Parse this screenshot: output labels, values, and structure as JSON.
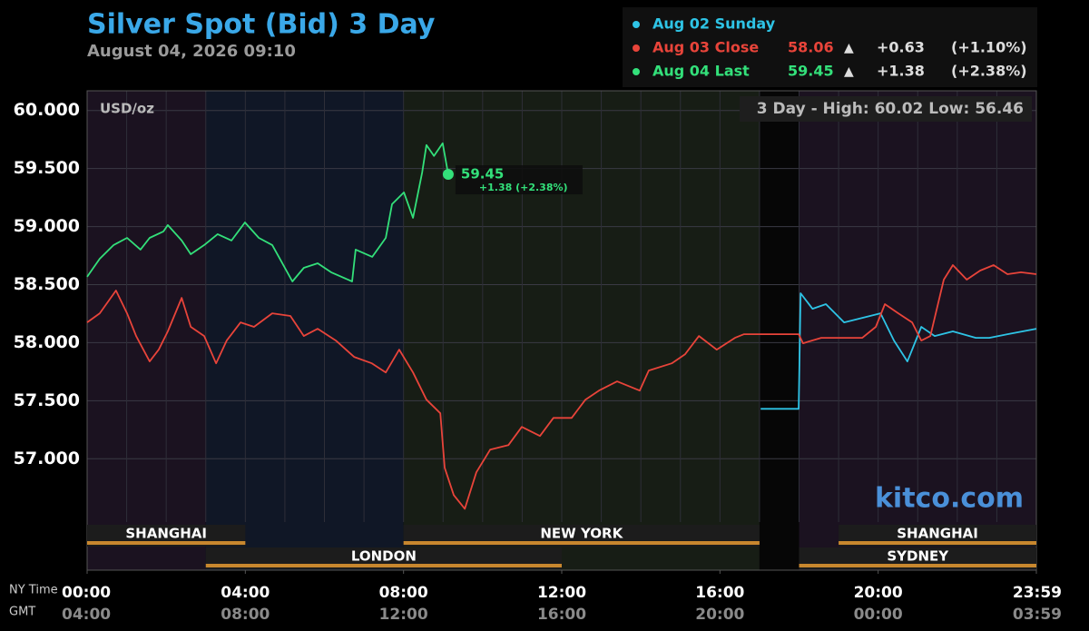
{
  "chart_data": {
    "type": "line",
    "title": "Silver Spot (Bid) 3 Day",
    "subtitle": "August 04, 2026 09:10",
    "y_label": "USD/oz",
    "range_note": "3 Day - High: 60.02  Low: 56.46",
    "watermark": "kitco.com",
    "x_axis_names": [
      "NY Time",
      "GMT"
    ],
    "xlim": [
      0,
      24
    ],
    "xticks": [
      {
        "value": 0,
        "label": "00:00"
      },
      {
        "value": 4,
        "label": "04:00"
      },
      {
        "value": 8,
        "label": "08:00"
      },
      {
        "value": 12,
        "label": "12:00"
      },
      {
        "value": 16,
        "label": "16:00"
      },
      {
        "value": 20,
        "label": "20:00"
      },
      {
        "value": 24,
        "label": "23:59"
      }
    ],
    "xticks_gmt": [
      "04:00",
      "08:00",
      "12:00",
      "16:00",
      "20:00",
      "00:00",
      "03:59"
    ],
    "xgrid": [
      1,
      2,
      3,
      4,
      5,
      6,
      7,
      8,
      9,
      10,
      11,
      12,
      13,
      14,
      15,
      16,
      17,
      18,
      19,
      20,
      21,
      22,
      23
    ],
    "ylim": [
      56.04,
      60.17
    ],
    "yticks": [
      {
        "value": 57,
        "label": "57.000"
      },
      {
        "value": 57.5,
        "label": "57.500"
      },
      {
        "value": 58,
        "label": "58.000"
      },
      {
        "value": 58.5,
        "label": "58.500"
      },
      {
        "value": 59,
        "label": "59.000"
      },
      {
        "value": 59.5,
        "label": "59.500"
      },
      {
        "value": 60,
        "label": "60.000"
      }
    ],
    "grid": true,
    "shading": [
      {
        "start": 0,
        "end": 3,
        "color": "#1b1220"
      },
      {
        "start": 3,
        "end": 8,
        "color": "#101726"
      },
      {
        "start": 8,
        "end": 17,
        "color": "#171d15"
      },
      {
        "start": 17,
        "end": 18,
        "color": "#060606"
      },
      {
        "start": 18,
        "end": 24,
        "color": "#1b1220"
      }
    ],
    "sessions": [
      {
        "name": "SHANGHAI",
        "start": 0,
        "end": 4,
        "row": 0
      },
      {
        "name": "NEW YORK",
        "start": 8,
        "end": 17,
        "row": 0
      },
      {
        "name": "SHANGHAI",
        "start": 19,
        "end": 24,
        "row": 0
      },
      {
        "name": "LONDON",
        "start": 3,
        "end": 12,
        "row": 1
      },
      {
        "name": "SYDNEY",
        "start": 18,
        "end": 24,
        "row": 1
      }
    ],
    "series": [
      {
        "name": "Aug 02 Sunday",
        "color": "#2ec4e6",
        "x": [
          17.03,
          17.99,
          18.04,
          18.34,
          18.68,
          19.14,
          19.6,
          20.06,
          20.4,
          20.74,
          21.09,
          21.43,
          21.89,
          22.47,
          22.81,
          23.27,
          24
        ],
        "values": [
          57.43,
          57.43,
          58.426,
          58.292,
          58.332,
          58.175,
          58.214,
          58.253,
          58.018,
          57.838,
          58.136,
          58.057,
          58.097,
          58.042,
          58.042,
          58.073,
          58.12
        ]
      },
      {
        "name": "Aug 03 Close",
        "color": "#e8443a",
        "summary": {
          "price": "58.06",
          "arrow": "▲",
          "change": "+0.63",
          "pct": "(+1.10%)"
        },
        "x": [
          0,
          0.32,
          0.73,
          1.01,
          1.24,
          1.58,
          1.81,
          2.04,
          2.39,
          2.62,
          2.96,
          3.26,
          3.53,
          3.88,
          4.22,
          4.68,
          5.14,
          5.48,
          5.83,
          6.29,
          6.75,
          7.2,
          7.55,
          7.89,
          8.24,
          8.58,
          8.93,
          9.04,
          9.27,
          9.55,
          9.84,
          10.19,
          10.65,
          10.99,
          11.45,
          11.79,
          12.25,
          12.6,
          12.94,
          13.4,
          13.97,
          14.2,
          14.78,
          15.12,
          15.47,
          15.92,
          16.38,
          16.61,
          17.03,
          17.99,
          18.1,
          18.56,
          19.14,
          19.6,
          19.94,
          20.17,
          20.51,
          20.86,
          21.09,
          21.32,
          21.66,
          21.89,
          22.24,
          22.58,
          22.92,
          23.27,
          23.61,
          24
        ],
        "values": [
          58.175,
          58.253,
          58.449,
          58.253,
          58.057,
          57.838,
          57.94,
          58.097,
          58.386,
          58.136,
          58.057,
          57.822,
          58.018,
          58.175,
          58.136,
          58.253,
          58.23,
          58.057,
          58.12,
          58.018,
          57.877,
          57.822,
          57.744,
          57.94,
          57.744,
          57.509,
          57.392,
          56.922,
          56.687,
          56.569,
          56.883,
          57.078,
          57.117,
          57.274,
          57.196,
          57.352,
          57.352,
          57.509,
          57.587,
          57.666,
          57.587,
          57.76,
          57.822,
          57.901,
          58.057,
          57.94,
          58.042,
          58.073,
          58.073,
          58.073,
          57.995,
          58.042,
          58.042,
          58.042,
          58.136,
          58.332,
          58.253,
          58.175,
          58.018,
          58.057,
          58.543,
          58.668,
          58.543,
          58.621,
          58.668,
          58.59,
          58.606,
          58.59
        ]
      },
      {
        "name": "Aug 04 Last",
        "color": "#33e07a",
        "summary": {
          "price": "59.45",
          "arrow": "▲",
          "change": "+1.38",
          "pct": "(+2.38%)"
        },
        "x": [
          0,
          0.32,
          0.67,
          1.01,
          1.35,
          1.58,
          1.93,
          2.04,
          2.39,
          2.62,
          2.96,
          3.3,
          3.65,
          3.99,
          4.34,
          4.68,
          4.91,
          5.19,
          5.48,
          5.83,
          6.17,
          6.7,
          6.79,
          7.21,
          7.55,
          7.71,
          8.01,
          8.24,
          8.47,
          8.58,
          8.77,
          8.99,
          9.13
        ],
        "values": [
          58.567,
          58.723,
          58.841,
          58.903,
          58.802,
          58.903,
          58.958,
          59.013,
          58.88,
          58.762,
          58.841,
          58.935,
          58.88,
          59.036,
          58.903,
          58.841,
          58.7,
          58.527,
          58.645,
          58.684,
          58.606,
          58.527,
          58.802,
          58.739,
          58.903,
          59.193,
          59.295,
          59.076,
          59.467,
          59.702,
          59.608,
          59.718,
          59.45
        ]
      }
    ],
    "last_annotation": {
      "price": "59.45",
      "change": "+1.38 (+2.38%)"
    }
  }
}
